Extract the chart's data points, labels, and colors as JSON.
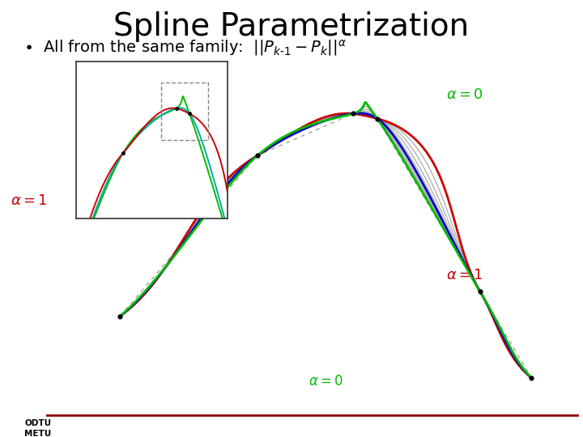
{
  "title": "Spline Parametrization",
  "background_color": "#ffffff",
  "title_fontsize": 28,
  "bullet_fontsize": 14,
  "color_alpha0": "#00bb00",
  "color_alpha05": "#0000cc",
  "color_alpha1": "#cc0000",
  "color_grey": "#aaaaaa",
  "color_dashed": "#888888",
  "footer_line_color": "#8b0000",
  "logo_text": "ODTU\nMETU"
}
